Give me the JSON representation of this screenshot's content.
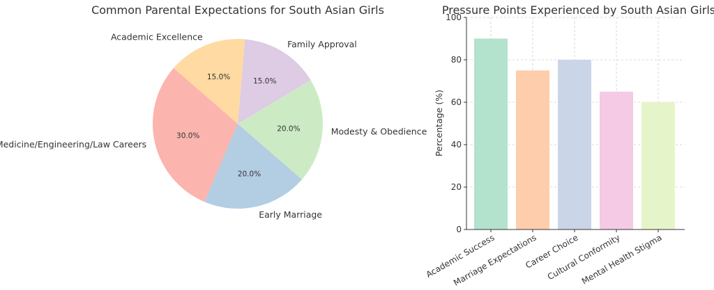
{
  "chart_data": [
    {
      "type": "pie",
      "title": "Common Parental Expectations for South Asian Girls",
      "slices": [
        {
          "label": "Academic Excellence",
          "value": 15.0,
          "pct_text": "15.0%",
          "color": "#FFDAA3"
        },
        {
          "label": "Medicine/Engineering/Law Careers",
          "value": 30.0,
          "pct_text": "30.0%",
          "color": "#FBB4AE"
        },
        {
          "label": "Early Marriage",
          "value": 20.0,
          "pct_text": "20.0%",
          "color": "#B3CDE3"
        },
        {
          "label": "Modesty & Obedience",
          "value": 20.0,
          "pct_text": "20.0%",
          "color": "#CCEBC5"
        },
        {
          "label": "Family Approval",
          "value": 15.0,
          "pct_text": "15.0%",
          "color": "#DECBE4"
        }
      ],
      "start_angle_deg": 85,
      "direction": "counterclockwise"
    },
    {
      "type": "bar",
      "title": "Pressure Points Experienced by South Asian Girls",
      "xlabel": "",
      "ylabel": "Percentage (%)",
      "ylim": [
        0,
        100
      ],
      "yticks": [
        "0",
        "20",
        "40",
        "60",
        "80",
        "100"
      ],
      "grid": true,
      "categories": [
        "Academic Success",
        "Marriage Expectations",
        "Career Choice",
        "Cultural Conformity",
        "Mental Health Stigma"
      ],
      "values": [
        90,
        75,
        80,
        65,
        60
      ],
      "colors": [
        "#B3E2CD",
        "#FDCDAC",
        "#CBD5E8",
        "#F4CAE4",
        "#E6F5C9"
      ]
    }
  ]
}
